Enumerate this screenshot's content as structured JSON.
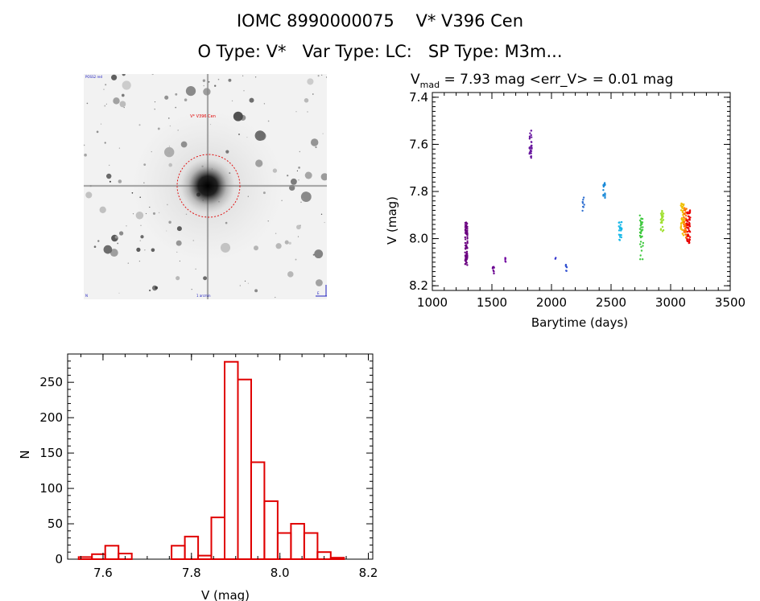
{
  "header": {
    "line1": "IOMC 8990000075    V* V396 Cen",
    "line2": "O Type: V*   Var Type: LC:   SP Type: M3m..."
  },
  "image_panel": {
    "target_label": "V* V396 Cen",
    "corner_labels": [
      "POSS2 red",
      "N",
      "E",
      "1 arcmin"
    ]
  },
  "chart_data": [
    {
      "type": "scatter",
      "title_parts": {
        "v": "V",
        "sub": "mad",
        "rest": " = 7.93 mag <err_V> = 0.01 mag"
      },
      "xlabel": "Barytime (days)",
      "ylabel": "V (mag)",
      "xlim": [
        1000,
        3500
      ],
      "ylim": [
        8.22,
        7.38
      ],
      "xticks": [
        1000,
        1500,
        2000,
        2500,
        3000,
        3500
      ],
      "xtick_labels": [
        "1000",
        "1500",
        "2000",
        "2500",
        "3000",
        "3500"
      ],
      "yticks": [
        7.4,
        7.6,
        7.8,
        8.0,
        8.2
      ],
      "ytick_labels": [
        "7.4",
        "7.6",
        "7.8",
        "8.0",
        "8.2"
      ],
      "groups": [
        {
          "x": [
            1275,
            1295
          ],
          "y": [
            7.93,
            8.12
          ],
          "n": 80,
          "color": "#6a0080"
        },
        {
          "x": [
            1505,
            1520
          ],
          "y": [
            8.12,
            8.15
          ],
          "n": 8,
          "color": "#6a0090"
        },
        {
          "x": [
            1605,
            1620
          ],
          "y": [
            8.08,
            8.1
          ],
          "n": 5,
          "color": "#7000a0"
        },
        {
          "x": [
            1815,
            1835
          ],
          "y": [
            7.54,
            7.66
          ],
          "n": 30,
          "color": "#6a1aa0"
        },
        {
          "x": [
            2030,
            2040
          ],
          "y": [
            8.08,
            8.09
          ],
          "n": 2,
          "color": "#3838d0"
        },
        {
          "x": [
            2120,
            2140
          ],
          "y": [
            8.11,
            8.14
          ],
          "n": 6,
          "color": "#3050d0"
        },
        {
          "x": [
            2260,
            2275
          ],
          "y": [
            7.82,
            7.89
          ],
          "n": 8,
          "color": "#3070d0"
        },
        {
          "x": [
            2435,
            2450
          ],
          "y": [
            7.76,
            7.83
          ],
          "n": 16,
          "color": "#1a8ad8"
        },
        {
          "x": [
            2565,
            2590
          ],
          "y": [
            7.93,
            8.01
          ],
          "n": 25,
          "color": "#18b8e8"
        },
        {
          "x": [
            2740,
            2770
          ],
          "y": [
            7.89,
            8.09
          ],
          "n": 35,
          "color": "#40c840"
        },
        {
          "x": [
            2915,
            2940
          ],
          "y": [
            7.88,
            7.97
          ],
          "n": 25,
          "color": "#a0e030"
        },
        {
          "x": [
            3085,
            3110
          ],
          "y": [
            7.85,
            7.99
          ],
          "n": 35,
          "color": "#f0c000"
        },
        {
          "x": [
            3110,
            3135
          ],
          "y": [
            7.87,
            8.0
          ],
          "n": 40,
          "color": "#ff7000"
        },
        {
          "x": [
            3135,
            3165
          ],
          "y": [
            7.88,
            8.02
          ],
          "n": 60,
          "color": "#e80000"
        }
      ]
    },
    {
      "type": "histogram",
      "xlabel": "V (mag)",
      "ylabel": "N",
      "xlim": [
        7.52,
        8.21
      ],
      "ylim": [
        0,
        290
      ],
      "xticks": [
        7.6,
        7.8,
        8.0,
        8.2
      ],
      "xtick_labels": [
        "7.6",
        "7.8",
        "8.0",
        "8.2"
      ],
      "yticks": [
        0,
        50,
        100,
        150,
        200,
        250
      ],
      "ytick_labels": [
        "0",
        "50",
        "100",
        "150",
        "200",
        "250"
      ],
      "bin_start": 7.545,
      "bin_width": 0.03,
      "counts": [
        3,
        7,
        19,
        8,
        0,
        0,
        0,
        19,
        32,
        5,
        59,
        279,
        254,
        137,
        82,
        37,
        50,
        37,
        10,
        2
      ],
      "bar_color": "#e00000"
    }
  ]
}
